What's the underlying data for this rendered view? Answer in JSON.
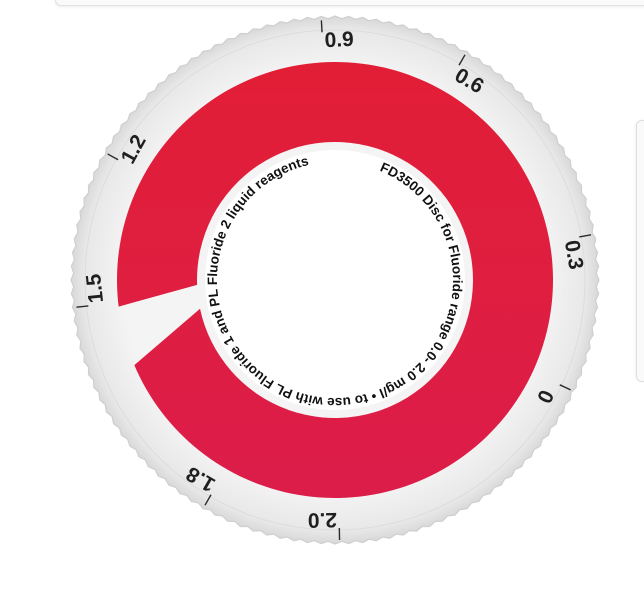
{
  "disc": {
    "scale_labels": [
      {
        "text": "0",
        "angle": 115
      },
      {
        "text": "0.3",
        "angle": 80
      },
      {
        "text": "0.6",
        "angle": 30
      },
      {
        "text": "0.9",
        "angle": -3
      },
      {
        "text": "1.2",
        "angle": -61
      },
      {
        "text": "1.5",
        "angle": -96
      },
      {
        "text": "1.8",
        "angle": -150
      },
      {
        "text": "2.0",
        "angle": 179
      }
    ],
    "inner_text": {
      "line1": "FD3500 Disc for Fluoride range 0.0- 2.0 mg/l",
      "line2": "to use with PL Fluoride 1 and PL Fluoride 2 liquid reagents"
    },
    "colors": {
      "band_top": "#e21e36",
      "band_bottom": "#dc1d4a",
      "rim": "#ececec",
      "rim_edge": "#cfcfcf"
    }
  }
}
